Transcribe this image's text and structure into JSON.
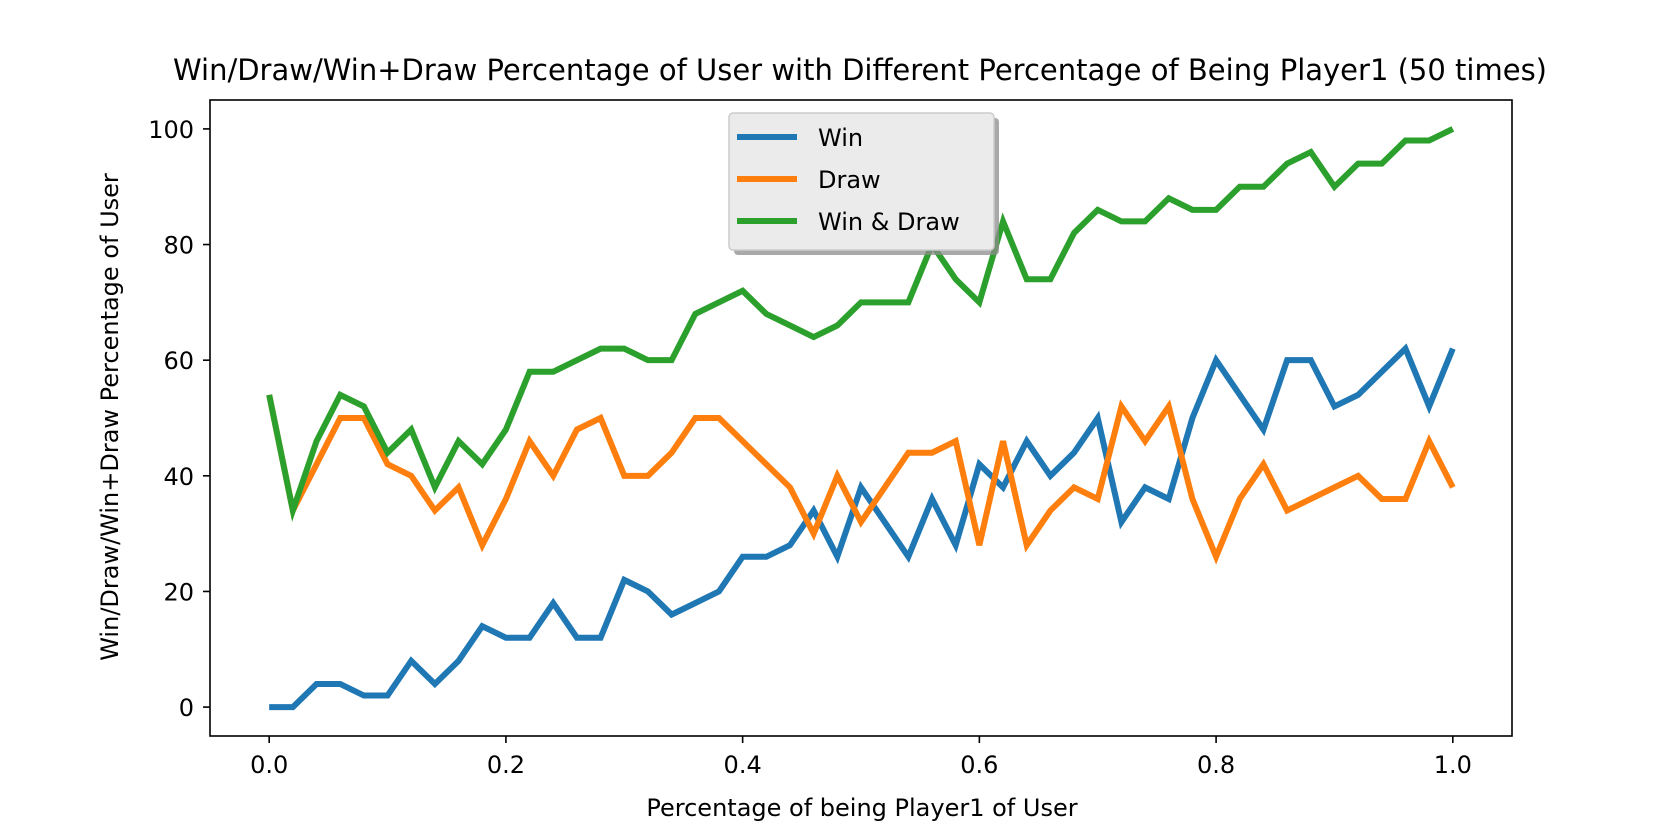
{
  "chart_data": {
    "type": "line",
    "title": "Win/Draw/Win+Draw Percentage of User with Different Percentage of Being Player1 (50 times)",
    "xlabel": "Percentage of being Player1 of User",
    "ylabel": "Win/Draw/Win+Draw Percentage of User",
    "xlim": [
      -0.05,
      1.05
    ],
    "ylim": [
      -5,
      105
    ],
    "x_ticks": [
      0.0,
      0.2,
      0.4,
      0.6,
      0.8,
      1.0
    ],
    "x_tick_labels": [
      "0.0",
      "0.2",
      "0.4",
      "0.6",
      "0.8",
      "1.0"
    ],
    "y_ticks": [
      0,
      20,
      40,
      60,
      80,
      100
    ],
    "y_tick_labels": [
      "0",
      "20",
      "40",
      "60",
      "80",
      "100"
    ],
    "grid": false,
    "legend_position": "upper-center",
    "x": [
      0.0,
      0.02,
      0.04,
      0.06,
      0.08,
      0.1,
      0.12,
      0.14,
      0.16,
      0.18,
      0.2,
      0.22,
      0.24,
      0.26,
      0.28,
      0.3,
      0.32,
      0.34,
      0.36,
      0.38,
      0.4,
      0.42,
      0.44,
      0.46,
      0.48,
      0.5,
      0.52,
      0.54,
      0.56,
      0.58,
      0.6,
      0.62,
      0.64,
      0.66,
      0.68,
      0.7,
      0.72,
      0.74,
      0.76,
      0.78,
      0.8,
      0.82,
      0.84,
      0.86,
      0.88,
      0.9,
      0.92,
      0.94,
      0.96,
      0.98,
      1.0
    ],
    "series": [
      {
        "name": "Win",
        "color": "#1f77b4",
        "values": [
          0,
          0,
          4,
          4,
          2,
          2,
          8,
          4,
          8,
          14,
          12,
          12,
          18,
          12,
          12,
          22,
          20,
          16,
          18,
          20,
          26,
          26,
          28,
          34,
          26,
          38,
          32,
          26,
          36,
          28,
          42,
          38,
          46,
          40,
          44,
          50,
          32,
          38,
          36,
          50,
          60,
          54,
          48,
          60,
          60,
          52,
          54,
          58,
          62,
          52,
          62
        ]
      },
      {
        "name": "Draw",
        "color": "#ff7f0e",
        "values": [
          54,
          34,
          42,
          50,
          50,
          42,
          40,
          34,
          38,
          28,
          36,
          46,
          40,
          48,
          50,
          40,
          40,
          44,
          50,
          50,
          46,
          42,
          38,
          30,
          40,
          32,
          38,
          44,
          44,
          46,
          28,
          46,
          28,
          34,
          38,
          36,
          52,
          46,
          52,
          36,
          26,
          36,
          42,
          34,
          36,
          38,
          40,
          36,
          36,
          46,
          38
        ]
      },
      {
        "name": "Win & Draw",
        "color": "#2ca02c",
        "values": [
          54,
          34,
          46,
          54,
          52,
          44,
          48,
          38,
          46,
          42,
          48,
          58,
          58,
          60,
          62,
          62,
          60,
          60,
          68,
          70,
          72,
          68,
          66,
          64,
          66,
          70,
          70,
          70,
          80,
          74,
          70,
          84,
          74,
          74,
          82,
          86,
          84,
          84,
          88,
          86,
          86,
          90,
          90,
          94,
          96,
          90,
          94,
          94,
          98,
          98,
          100
        ]
      }
    ]
  }
}
